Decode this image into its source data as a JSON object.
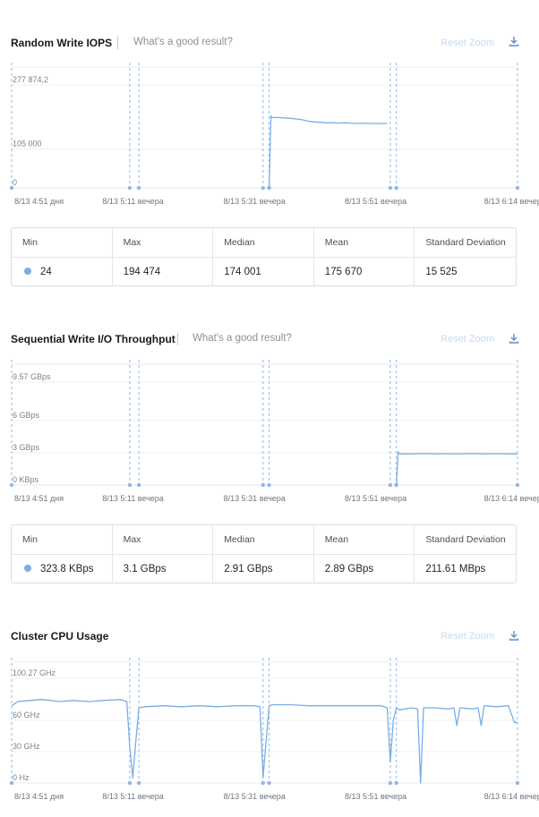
{
  "panels": [
    {
      "title": "Random Write IOPS",
      "good_result": "What's a good result?",
      "reset_zoom": "Reset Zoom",
      "download_icon": "download-icon",
      "stats": {
        "headers": [
          "Min",
          "Max",
          "Median",
          "Mean",
          "Standard Deviation"
        ],
        "values": [
          "24",
          "194 474",
          "174 001",
          "175 670",
          "15 525"
        ]
      }
    },
    {
      "title": "Sequential Write I/O Throughput",
      "good_result": "What's a good result?",
      "reset_zoom": "Reset Zoom",
      "download_icon": "download-icon",
      "stats": {
        "headers": [
          "Min",
          "Max",
          "Median",
          "Mean",
          "Standard Deviation"
        ],
        "values": [
          "323.8 KBps",
          "3.1 GBps",
          "2.91 GBps",
          "2.89 GBps",
          "211.61 MBps"
        ]
      }
    },
    {
      "title": "Cluster CPU Usage",
      "reset_zoom": "Reset Zoom",
      "download_icon": "download-icon"
    }
  ],
  "chart_data": [
    {
      "type": "line",
      "title": "Random Write IOPS",
      "y_ticks": [
        "277 874,2",
        "105 000",
        "0"
      ],
      "y_tick_values": [
        277874.2,
        105000,
        0
      ],
      "ylim": [
        0,
        277874.2
      ],
      "x_ticks": [
        "8/13 4:51 дня",
        "8/13 5:11 вечера",
        "8/13 5:31 вечера",
        "8/13 5:51 вечера",
        "8/13 6:14 вечер"
      ],
      "x_minutes": [
        0,
        20,
        40,
        60,
        83
      ],
      "markers_minutes": [
        0,
        19.5,
        21,
        41.5,
        42.5,
        62.5,
        63.5,
        83.5
      ],
      "series": [
        {
          "color": "#7aaee3",
          "x": [
            42.5,
            42.8,
            43,
            44,
            45,
            46,
            47,
            48,
            49,
            50,
            51,
            52,
            53,
            54,
            55,
            56,
            57,
            58,
            59,
            60,
            61,
            62
          ],
          "y": [
            24,
            194474,
            190000,
            190000,
            189000,
            188000,
            186000,
            184000,
            180000,
            178000,
            177000,
            176000,
            176000,
            175000,
            176000,
            175000,
            174000,
            175000,
            174000,
            174000,
            174000,
            174000
          ]
        }
      ],
      "grid": true
    },
    {
      "type": "line",
      "title": "Sequential Write I/O Throughput",
      "y_ticks": [
        "9.57 GBps",
        "6 GBps",
        "3 GBps",
        "0 KBps"
      ],
      "y_tick_values": [
        9.57,
        6,
        3,
        0
      ],
      "ylim": [
        0,
        9.57
      ],
      "x_ticks": [
        "8/13 4:51 дня",
        "8/13 5:11 вечера",
        "8/13 5:31 вечера",
        "8/13 5:51 вечера",
        "8/13 6:14 вечер"
      ],
      "x_minutes": [
        0,
        20,
        40,
        60,
        83
      ],
      "markers_minutes": [
        0,
        19.5,
        21,
        41.5,
        42.5,
        62.5,
        63.5,
        83.5
      ],
      "series": [
        {
          "color": "#7aaee3",
          "x": [
            63.5,
            63.8,
            64,
            66,
            68,
            70,
            72,
            74,
            76,
            78,
            80,
            82,
            83.5
          ],
          "y": [
            0.0003,
            3.1,
            2.9,
            2.9,
            2.92,
            2.9,
            2.91,
            2.9,
            2.92,
            2.9,
            2.91,
            2.9,
            2.9
          ]
        }
      ],
      "grid": true
    },
    {
      "type": "line",
      "title": "Cluster CPU Usage",
      "y_ticks": [
        "100.27 GHz",
        "60 GHz",
        "30 GHz",
        "0 Hz"
      ],
      "y_tick_values": [
        100.27,
        60,
        30,
        0
      ],
      "ylim": [
        0,
        100.27
      ],
      "x_ticks": [
        "8/13 4:51 дня",
        "8/13 5:11 вечера",
        "8/13 5:31 вечера",
        "8/13 5:51 вечера",
        "8/13 6:14 вечер"
      ],
      "x_minutes": [
        0,
        20,
        40,
        60,
        83
      ],
      "markers_minutes": [
        0,
        19.5,
        21,
        41.5,
        42.5,
        62.5,
        63.5,
        83.5
      ],
      "series": [
        {
          "color": "#7aaee3",
          "x": [
            0,
            1,
            3,
            5,
            8,
            10,
            13,
            15,
            18,
            19,
            19.5,
            20,
            20.5,
            21,
            22,
            25,
            28,
            31,
            34,
            37,
            40,
            41,
            41.5,
            42,
            42.5,
            43,
            46,
            49,
            52,
            55,
            58,
            61,
            62,
            62.5,
            63,
            63.5,
            64,
            66,
            67,
            67.5,
            68,
            70,
            72,
            73,
            73.5,
            74,
            76,
            77,
            77.5,
            78,
            80,
            82,
            83,
            83.5
          ],
          "y": [
            74,
            78,
            79,
            80,
            78,
            79,
            78,
            79,
            80,
            78,
            35,
            5,
            40,
            72,
            73,
            74,
            73,
            74,
            73,
            74,
            74,
            73,
            5,
            40,
            74,
            75,
            75,
            74,
            74,
            74,
            74,
            74,
            72,
            20,
            60,
            72,
            70,
            72,
            71,
            0,
            72,
            72,
            71,
            72,
            55,
            72,
            71,
            72,
            55,
            74,
            73,
            74,
            58,
            58
          ]
        }
      ],
      "grid": true
    }
  ]
}
